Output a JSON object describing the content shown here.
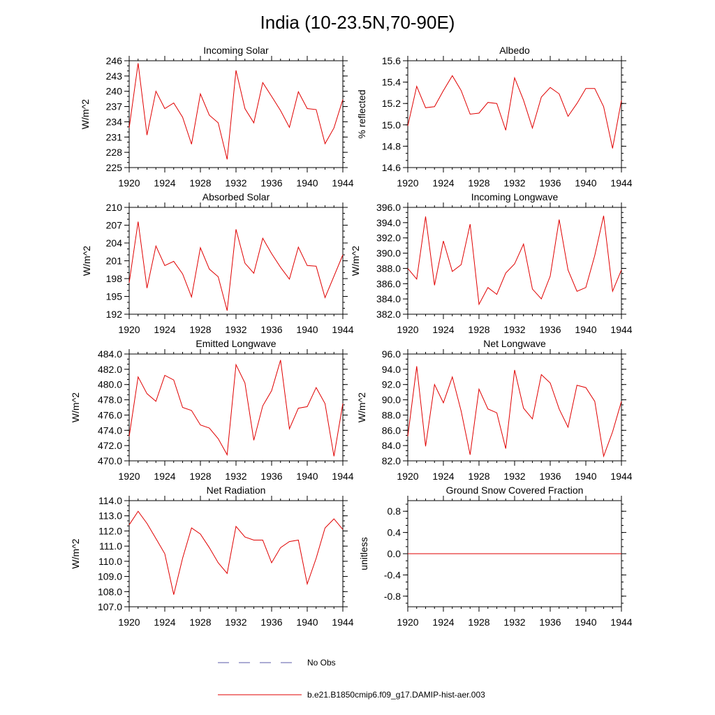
{
  "figure": {
    "title": "India (10-23.5N,70-90E)",
    "legend": [
      {
        "label": "No Obs",
        "color": "#5a5aa8",
        "dash": true
      },
      {
        "label": "b.e21.B1850cmip6.f09_g17.DAMIP-hist-aer.003",
        "color": "#e00000",
        "dash": false
      }
    ]
  },
  "chart_data": [
    {
      "type": "line",
      "title": "Incoming Solar",
      "ylabel": "W/m^2",
      "xlim": [
        1920,
        1944
      ],
      "ylim": [
        225,
        246
      ],
      "xticks": [
        "1920",
        "1924",
        "1928",
        "1932",
        "1936",
        "1940",
        "1944"
      ],
      "yticks": [
        "225",
        "228",
        "231",
        "234",
        "237",
        "240",
        "243",
        "246"
      ],
      "x": [
        1920,
        1921,
        1922,
        1923,
        1924,
        1925,
        1926,
        1927,
        1928,
        1929,
        1930,
        1931,
        1932,
        1933,
        1934,
        1935,
        1936,
        1937,
        1938,
        1939,
        1940,
        1941,
        1942,
        1943,
        1944
      ],
      "series": [
        {
          "color": "#e00000",
          "values": [
            232.8,
            245.5,
            231.4,
            240.0,
            236.6,
            237.7,
            234.9,
            229.6,
            239.5,
            235.3,
            233.8,
            226.6,
            244.1,
            236.6,
            233.8,
            241.7,
            239.0,
            236.2,
            232.9,
            239.9,
            236.6,
            236.4,
            229.7,
            232.8,
            238.4
          ]
        }
      ]
    },
    {
      "type": "line",
      "title": "Albedo",
      "ylabel": "% reflected",
      "xlim": [
        1920,
        1944
      ],
      "ylim": [
        14.6,
        15.6
      ],
      "xticks": [
        "1920",
        "1924",
        "1928",
        "1932",
        "1936",
        "1940",
        "1944"
      ],
      "yticks": [
        "14.6",
        "14.8",
        "15.0",
        "15.2",
        "15.4",
        "15.6"
      ],
      "x": [
        1920,
        1921,
        1922,
        1923,
        1924,
        1925,
        1926,
        1927,
        1928,
        1929,
        1930,
        1931,
        1932,
        1933,
        1934,
        1935,
        1936,
        1937,
        1938,
        1939,
        1940,
        1941,
        1942,
        1943,
        1944
      ],
      "series": [
        {
          "color": "#e00000",
          "values": [
            14.99,
            15.36,
            15.16,
            15.17,
            15.32,
            15.46,
            15.32,
            15.1,
            15.11,
            15.21,
            15.2,
            14.95,
            15.44,
            15.23,
            14.97,
            15.26,
            15.35,
            15.29,
            15.08,
            15.2,
            15.34,
            15.34,
            15.17,
            14.78,
            15.23
          ]
        }
      ]
    },
    {
      "type": "line",
      "title": "Absorbed Solar",
      "ylabel": "W/m^2",
      "xlim": [
        1920,
        1944
      ],
      "ylim": [
        192,
        210
      ],
      "xticks": [
        "1920",
        "1924",
        "1928",
        "1932",
        "1936",
        "1940",
        "1944"
      ],
      "yticks": [
        "192",
        "195",
        "198",
        "201",
        "204",
        "207",
        "210"
      ],
      "x": [
        1920,
        1921,
        1922,
        1923,
        1924,
        1925,
        1926,
        1927,
        1928,
        1929,
        1930,
        1931,
        1932,
        1933,
        1934,
        1935,
        1936,
        1937,
        1938,
        1939,
        1940,
        1941,
        1942,
        1943,
        1944
      ],
      "series": [
        {
          "color": "#e00000",
          "values": [
            197.3,
            207.6,
            196.4,
            203.5,
            200.2,
            200.9,
            198.8,
            194.9,
            203.2,
            199.6,
            198.3,
            192.6,
            206.3,
            200.6,
            198.9,
            204.8,
            202.2,
            199.9,
            197.9,
            203.3,
            200.2,
            200.1,
            194.8,
            198.4,
            202.0
          ]
        }
      ]
    },
    {
      "type": "line",
      "title": "Incoming Longwave",
      "ylabel": "W/m^2",
      "xlim": [
        1920,
        1944
      ],
      "ylim": [
        382.0,
        396.0
      ],
      "xticks": [
        "1920",
        "1924",
        "1928",
        "1932",
        "1936",
        "1940",
        "1944"
      ],
      "yticks": [
        "382.0",
        "384.0",
        "386.0",
        "388.0",
        "390.0",
        "392.0",
        "394.0",
        "396.0"
      ],
      "x": [
        1920,
        1921,
        1922,
        1923,
        1924,
        1925,
        1926,
        1927,
        1928,
        1929,
        1930,
        1931,
        1932,
        1933,
        1934,
        1935,
        1936,
        1937,
        1938,
        1939,
        1940,
        1941,
        1942,
        1943,
        1944
      ],
      "series": [
        {
          "color": "#e00000",
          "values": [
            388.0,
            386.6,
            394.8,
            385.8,
            391.6,
            387.6,
            388.5,
            393.8,
            383.3,
            385.5,
            384.6,
            387.4,
            388.6,
            391.2,
            385.3,
            384.0,
            387.0,
            394.4,
            387.8,
            385.0,
            385.5,
            389.7,
            394.9,
            385.0,
            387.8
          ]
        }
      ]
    },
    {
      "type": "line",
      "title": "Emitted Longwave",
      "ylabel": "W/m^2",
      "xlim": [
        1920,
        1944
      ],
      "ylim": [
        470.0,
        484.0
      ],
      "xticks": [
        "1920",
        "1924",
        "1928",
        "1932",
        "1936",
        "1940",
        "1944"
      ],
      "yticks": [
        "470.0",
        "472.0",
        "474.0",
        "476.0",
        "478.0",
        "480.0",
        "482.0",
        "484.0"
      ],
      "x": [
        1920,
        1921,
        1922,
        1923,
        1924,
        1925,
        1926,
        1927,
        1928,
        1929,
        1930,
        1931,
        1932,
        1933,
        1934,
        1935,
        1936,
        1937,
        1938,
        1939,
        1940,
        1941,
        1942,
        1943,
        1944
      ],
      "series": [
        {
          "color": "#e00000",
          "values": [
            473.2,
            481.0,
            478.8,
            477.8,
            481.2,
            480.6,
            477.0,
            476.6,
            474.7,
            474.3,
            472.9,
            470.8,
            482.6,
            480.2,
            472.7,
            477.2,
            479.2,
            483.2,
            474.2,
            476.9,
            477.1,
            479.6,
            477.5,
            470.6,
            477.5
          ]
        }
      ]
    },
    {
      "type": "line",
      "title": "Net Longwave",
      "ylabel": "W/m^2",
      "xlim": [
        1920,
        1944
      ],
      "ylim": [
        82.0,
        96.0
      ],
      "xticks": [
        "1920",
        "1924",
        "1928",
        "1932",
        "1936",
        "1940",
        "1944"
      ],
      "yticks": [
        "82.0",
        "84.0",
        "86.0",
        "88.0",
        "90.0",
        "92.0",
        "94.0",
        "96.0"
      ],
      "x": [
        1920,
        1921,
        1922,
        1923,
        1924,
        1925,
        1926,
        1927,
        1928,
        1929,
        1930,
        1931,
        1932,
        1933,
        1934,
        1935,
        1936,
        1937,
        1938,
        1939,
        1940,
        1941,
        1942,
        1943,
        1944
      ],
      "series": [
        {
          "color": "#e00000",
          "values": [
            85.2,
            94.4,
            83.9,
            92.0,
            89.6,
            93.0,
            88.5,
            82.8,
            91.4,
            88.8,
            88.3,
            83.6,
            93.9,
            88.9,
            87.5,
            93.3,
            92.2,
            88.8,
            86.4,
            91.9,
            91.6,
            89.8,
            82.6,
            85.8,
            89.8
          ]
        }
      ]
    },
    {
      "type": "line",
      "title": "Net Radiation",
      "ylabel": "W/m^2",
      "xlim": [
        1920,
        1944
      ],
      "ylim": [
        107.0,
        114.0
      ],
      "xticks": [
        "1920",
        "1924",
        "1928",
        "1932",
        "1936",
        "1940",
        "1944"
      ],
      "yticks": [
        "107.0",
        "108.0",
        "109.0",
        "110.0",
        "111.0",
        "112.0",
        "113.0",
        "114.0"
      ],
      "x": [
        1920,
        1921,
        1922,
        1923,
        1924,
        1925,
        1926,
        1927,
        1928,
        1929,
        1930,
        1931,
        1932,
        1933,
        1934,
        1935,
        1936,
        1937,
        1938,
        1939,
        1940,
        1941,
        1942,
        1943,
        1944
      ],
      "series": [
        {
          "color": "#e00000",
          "values": [
            112.4,
            113.3,
            112.5,
            111.5,
            110.5,
            107.8,
            110.2,
            112.2,
            111.8,
            110.9,
            109.9,
            109.2,
            112.3,
            111.6,
            111.4,
            111.4,
            109.9,
            110.9,
            111.3,
            111.4,
            108.5,
            110.2,
            112.2,
            112.8,
            112.1
          ]
        }
      ]
    },
    {
      "type": "line",
      "title": "Ground Snow Covered Fraction",
      "ylabel": "unitless",
      "xlim": [
        1920,
        1944
      ],
      "ylim": [
        -1.0,
        1.0
      ],
      "xticks": [
        "1920",
        "1924",
        "1928",
        "1932",
        "1936",
        "1940",
        "1944"
      ],
      "yticks": [
        "-0.8",
        "-0.4",
        "0.0",
        "0.4",
        "0.8"
      ],
      "x": [
        1920,
        1921,
        1922,
        1923,
        1924,
        1925,
        1926,
        1927,
        1928,
        1929,
        1930,
        1931,
        1932,
        1933,
        1934,
        1935,
        1936,
        1937,
        1938,
        1939,
        1940,
        1941,
        1942,
        1943,
        1944
      ],
      "series": [
        {
          "color": "#e00000",
          "values": [
            0,
            0,
            0,
            0,
            0,
            0,
            0,
            0,
            0,
            0,
            0,
            0,
            0,
            0,
            0,
            0,
            0,
            0,
            0,
            0,
            0,
            0,
            0,
            0,
            0
          ]
        }
      ]
    }
  ]
}
